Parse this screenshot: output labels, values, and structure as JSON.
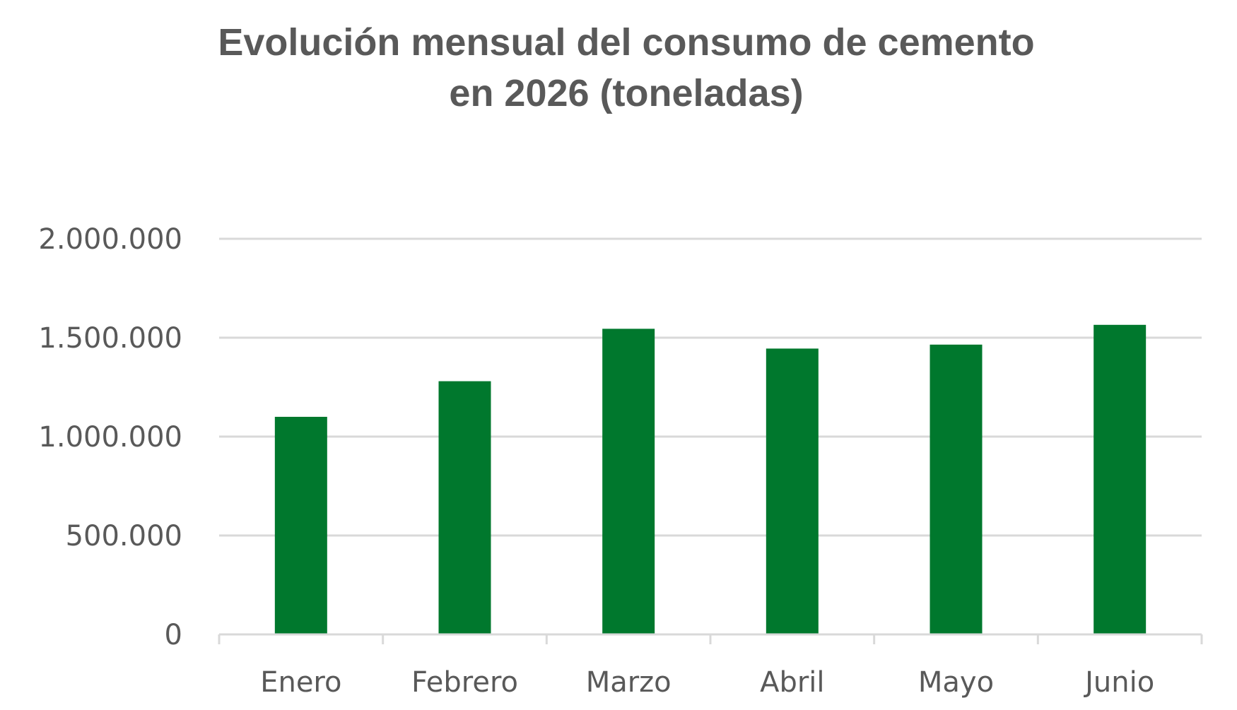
{
  "chart_data": {
    "type": "bar",
    "title_lines": [
      "Evolución mensual del consumo de cemento",
      "en 2026 (toneladas)"
    ],
    "categories": [
      "Enero",
      "Febrero",
      "Marzo",
      "Abril",
      "Mayo",
      "Junio"
    ],
    "values": [
      1100000,
      1280000,
      1545000,
      1445000,
      1465000,
      1565000
    ],
    "xlabel": "",
    "ylabel": "",
    "ylim": [
      0,
      2000000
    ],
    "yticks": [
      0,
      500000,
      1000000,
      1500000,
      2000000
    ],
    "ytick_labels": [
      "0",
      "500.000",
      "1.000.000",
      "1.500.000",
      "2.000.000"
    ],
    "grid": true,
    "legend": "none",
    "bar_color": "#00782D"
  }
}
